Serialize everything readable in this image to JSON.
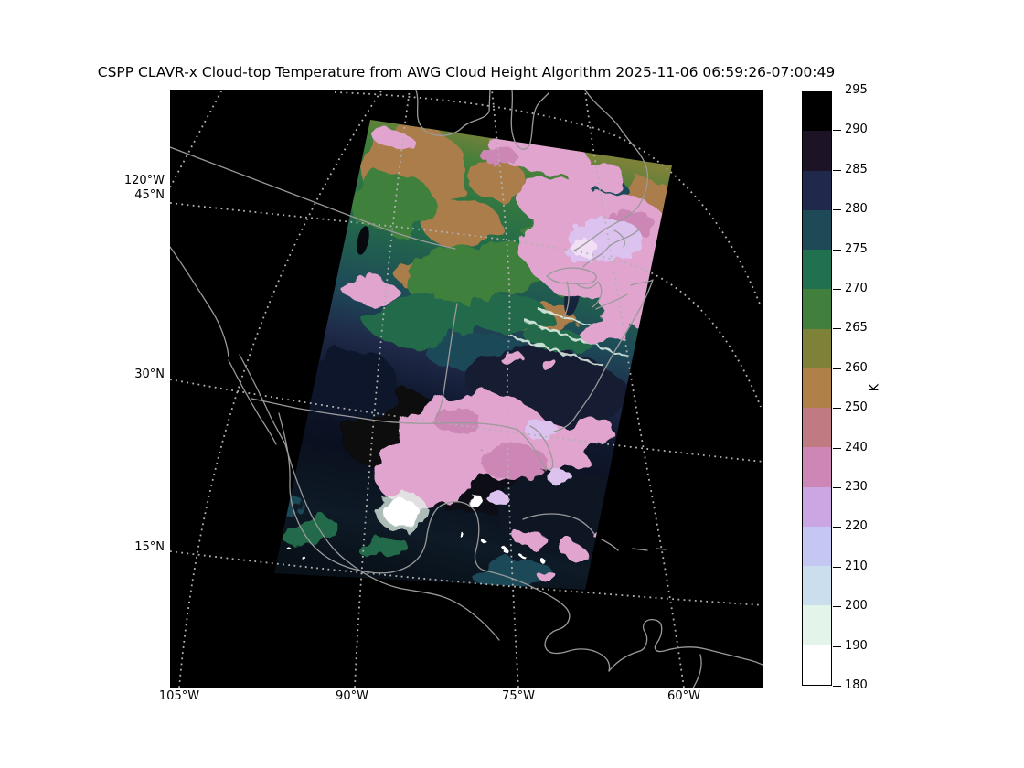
{
  "figure": {
    "title": "CSPP CLAVR-x Cloud-top Temperature from AWG Cloud Height Algorithm 2025-11-06 06:59:26-07:00:49",
    "background": "#ffffff"
  },
  "map": {
    "background": "#000000",
    "coastline_color": "#9a9a9a",
    "graticule_color": "#b2b2b2",
    "corner_lon_label": "120°W",
    "lat_labels": [
      {
        "text": "45°N"
      },
      {
        "text": "30°N"
      },
      {
        "text": "15°N"
      }
    ],
    "lon_labels": [
      {
        "text": "105°W"
      },
      {
        "text": "90°W"
      },
      {
        "text": "75°W"
      },
      {
        "text": "60°W"
      }
    ]
  },
  "colorbar": {
    "unit": "K",
    "outline_color": "#000000",
    "tick_labels": [
      "295",
      "290",
      "285",
      "280",
      "275",
      "270",
      "265",
      "260",
      "250",
      "240",
      "230",
      "220",
      "210",
      "200",
      "190",
      "180"
    ],
    "segment_colors": [
      "#000000",
      "#1c1326",
      "#20294c",
      "#1e4a58",
      "#217050",
      "#41803c",
      "#7e8138",
      "#b08049",
      "#c07b82",
      "#cd87b7",
      "#caa7e3",
      "#c3c7f2",
      "#cadeee",
      "#e3f4ea",
      "#ffffff"
    ]
  },
  "palette": {
    "tan": "#ab7d4b",
    "olive": "#7e8138",
    "green": "#41803c",
    "deepgreen": "#236b49",
    "teal": "#1e4a58",
    "navy": "#1f2a49",
    "darknavy": "#131c30",
    "nearblack": "#07090f",
    "pink": "#e0a4ce",
    "deeppink": "#cd87b7",
    "lavender": "#dcc2ef",
    "periwinkle": "#c3c7f2",
    "paleblue": "#cadeee",
    "mint": "#e3f4ea",
    "white": "#ffffff"
  }
}
